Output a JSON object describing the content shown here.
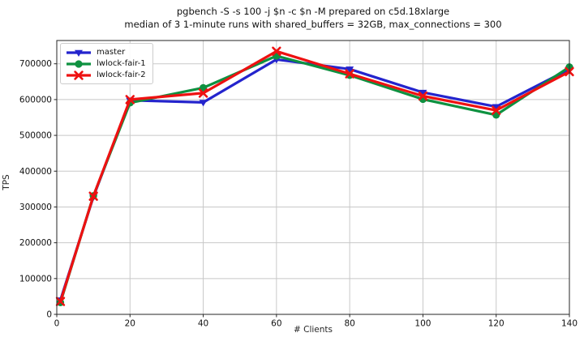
{
  "chart_data": {
    "type": "line",
    "title": "pgbench -S -s 100 -j $n -c $n -M prepared on c5d.18xlarge",
    "subtitle": "median of 3 1-minute runs with shared_buffers = 32GB, max_connections = 300",
    "xlabel": "# Clients",
    "ylabel": "TPS",
    "xlim": [
      0,
      140
    ],
    "ylim": [
      0,
      765000
    ],
    "xticks": [
      0,
      20,
      40,
      60,
      80,
      100,
      120,
      140
    ],
    "yticks": [
      0,
      100000,
      200000,
      300000,
      400000,
      500000,
      600000,
      700000
    ],
    "grid": true,
    "legend_position": "upper-left",
    "x": [
      1,
      10,
      20,
      40,
      60,
      80,
      100,
      120,
      140
    ],
    "series": [
      {
        "name": "master",
        "color": "#2424cd",
        "marker": "triangle-down",
        "values": [
          40000,
          328000,
          598000,
          592000,
          712000,
          685000,
          620000,
          580000,
          685000
        ]
      },
      {
        "name": "lwlock-fair-1",
        "color": "#0e9140",
        "marker": "circle",
        "values": [
          33000,
          331000,
          591000,
          633000,
          722000,
          668000,
          601000,
          557000,
          691000
        ]
      },
      {
        "name": "lwlock-fair-2",
        "color": "#ee1111",
        "marker": "x",
        "values": [
          36000,
          330000,
          600000,
          618000,
          735000,
          672000,
          610000,
          570000,
          678000
        ]
      }
    ]
  },
  "colors": {
    "background": "#ffffff",
    "grid": "#c8c8c8",
    "axis": "#262626",
    "text": "#111111"
  }
}
